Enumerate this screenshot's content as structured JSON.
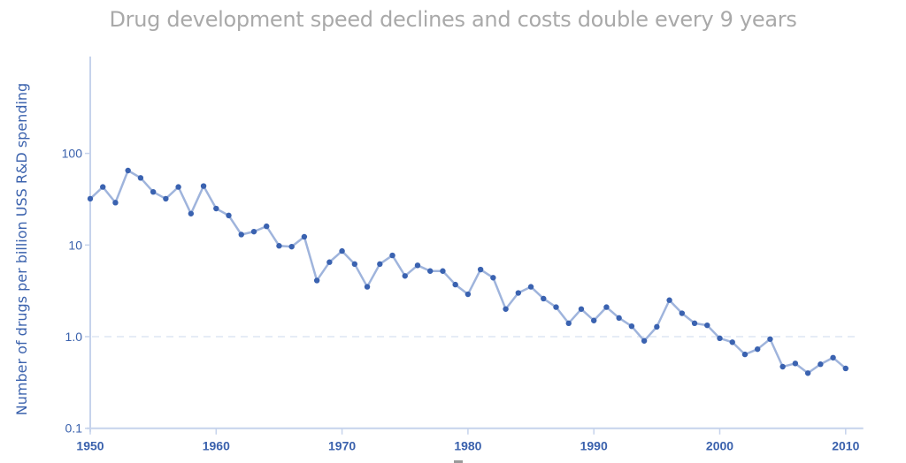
{
  "chart_data": {
    "type": "line",
    "title": "Drug development speed declines and costs double every 9 years",
    "xlabel": "",
    "ylabel": "Number of drugs per billion USS R&D spending",
    "yscale": "log",
    "xlim": [
      1950,
      2011.4
    ],
    "ylim": [
      0.1,
      1000
    ],
    "x_ticks": [
      1950,
      1960,
      1970,
      1980,
      1990,
      2000,
      2010
    ],
    "x_tick_labels": [
      "1950",
      "1960",
      "1970",
      "1980",
      "1990",
      "2000",
      "2010"
    ],
    "y_ticks": [
      0.1,
      1,
      10,
      100
    ],
    "y_tick_labels": [
      "0.1",
      "1.0",
      "10",
      "100"
    ],
    "gridlines": [
      {
        "axis": "y",
        "value": 1,
        "style": "dashed"
      }
    ],
    "legend": "none",
    "colors": {
      "line": "#9fb4dc",
      "marker": "#3a62b0",
      "axis": "#c6d3ec",
      "tick_text": "#3b62ad",
      "title": "#a9a9a9",
      "grid": "#dde5f3"
    },
    "series": [
      {
        "name": "Drugs per billion USS R&D",
        "x": [
          1950,
          1951,
          1952,
          1953,
          1954,
          1955,
          1956,
          1957,
          1958,
          1959,
          1960,
          1961,
          1962,
          1963,
          1964,
          1965,
          1966,
          1967,
          1968,
          1969,
          1970,
          1971,
          1972,
          1973,
          1974,
          1975,
          1976,
          1977,
          1978,
          1979,
          1980,
          1981,
          1982,
          1983,
          1984,
          1985,
          1986,
          1987,
          1988,
          1989,
          1990,
          1991,
          1992,
          1993,
          1994,
          1995,
          1996,
          1997,
          1998,
          1999,
          2000,
          2001,
          2002,
          2003,
          2004,
          2005,
          2006,
          2007,
          2008,
          2009,
          2010
        ],
        "values": [
          32,
          43,
          29,
          65,
          54,
          38,
          32,
          43,
          22,
          44,
          25,
          21,
          13,
          14,
          16,
          9.8,
          9.6,
          12.3,
          4.1,
          6.5,
          8.6,
          6.2,
          3.5,
          6.2,
          7.7,
          4.6,
          6.0,
          5.2,
          5.2,
          3.7,
          2.9,
          5.4,
          4.4,
          2.0,
          3.0,
          3.5,
          2.6,
          2.1,
          1.4,
          2.0,
          1.5,
          2.1,
          1.6,
          1.3,
          0.9,
          1.28,
          2.5,
          1.8,
          1.4,
          1.33,
          0.96,
          0.87,
          0.64,
          0.73,
          0.94,
          0.47,
          0.51,
          0.4,
          0.5,
          0.59,
          0.45
        ]
      }
    ]
  }
}
